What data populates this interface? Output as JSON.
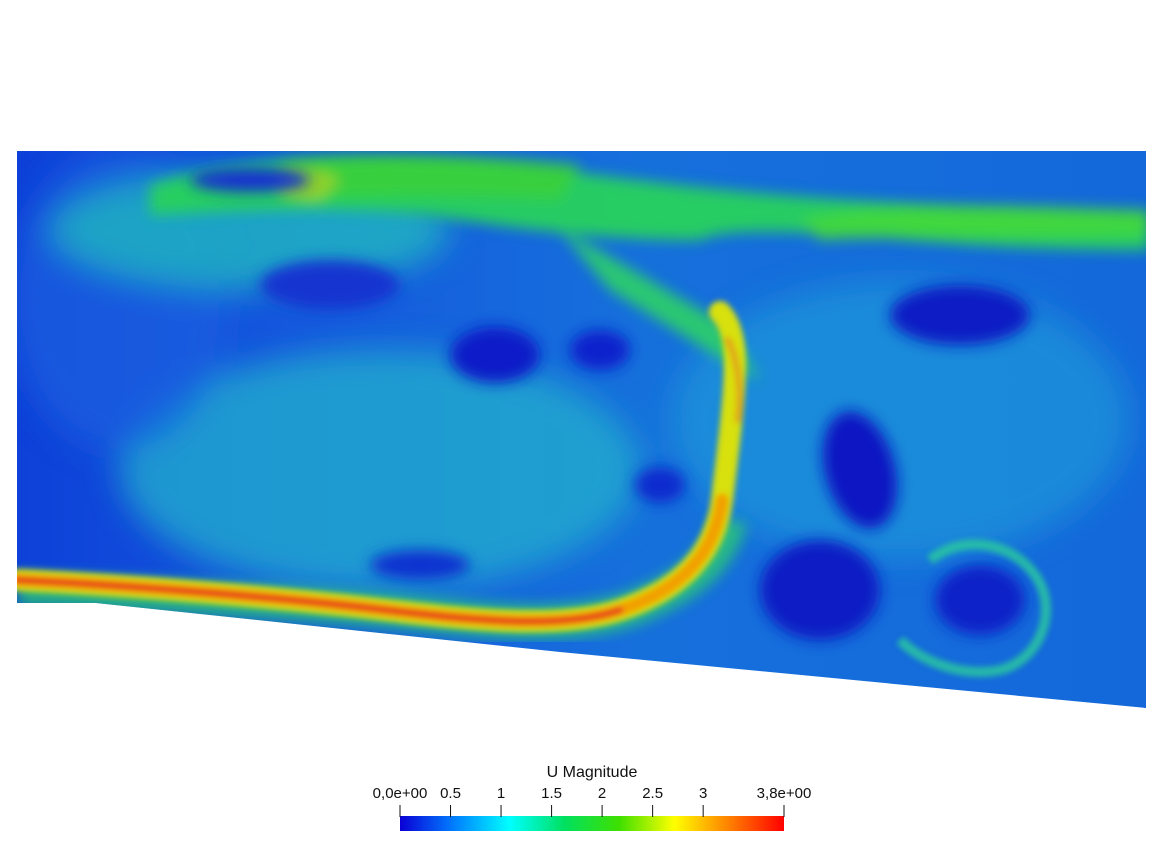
{
  "colorbar": {
    "title": "U Magnitude",
    "min_label": "0,0e+00",
    "max_label": "3,8e+00",
    "range": [
      0,
      3.8
    ],
    "ticks": [
      {
        "value": 0.0,
        "label": "0,0e+00"
      },
      {
        "value": 0.5,
        "label": "0.5"
      },
      {
        "value": 1.0,
        "label": "1"
      },
      {
        "value": 1.5,
        "label": "1.5"
      },
      {
        "value": 2.0,
        "label": "2"
      },
      {
        "value": 2.5,
        "label": "2.5"
      },
      {
        "value": 3.0,
        "label": "3"
      },
      {
        "value": 3.8,
        "label": "3,8e+00"
      }
    ],
    "colormap": [
      "#0a00d6",
      "#0080ff",
      "#00ffff",
      "#00e060",
      "#3fe000",
      "#ffff00",
      "#ff8000",
      "#ff0000"
    ]
  },
  "field": {
    "colors": {
      "low": "#0a24c8",
      "mid_low": "#1a66e0",
      "mid": "#19c2b0",
      "mid_high": "#2ad86a",
      "high_yellow": "#f5e000",
      "high": "#e8281e"
    }
  }
}
